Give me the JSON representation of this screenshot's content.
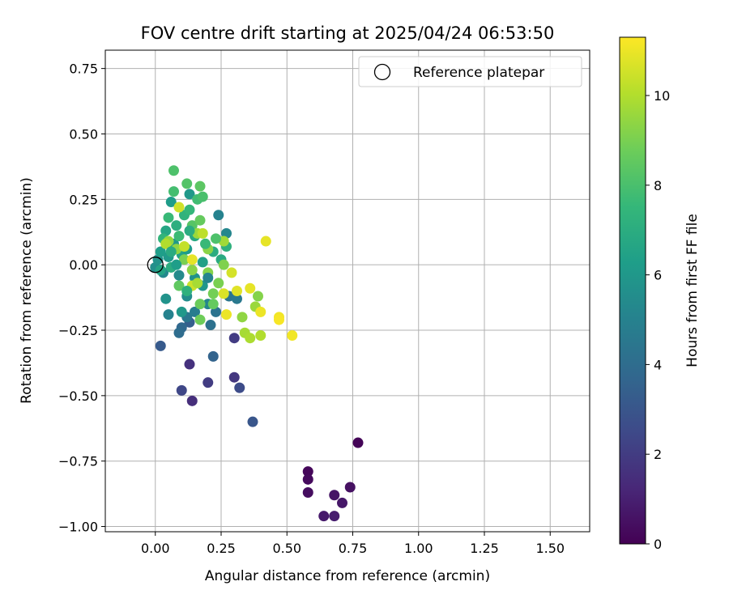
{
  "chart_data": {
    "type": "scatter",
    "title": "FOV centre drift starting at 2025/04/24 06:53:50",
    "xlabel": "Angular distance from reference (arcmin)",
    "ylabel": "Rotation from reference (arcmin)",
    "xlim": [
      -0.19,
      1.65
    ],
    "ylim": [
      -1.02,
      0.82
    ],
    "xticks": [
      0.0,
      0.25,
      0.5,
      0.75,
      1.0,
      1.25,
      1.5
    ],
    "xtick_labels": [
      "0.00",
      "0.25",
      "0.50",
      "0.75",
      "1.00",
      "1.25",
      "1.50"
    ],
    "yticks": [
      0.75,
      0.5,
      0.25,
      0.0,
      -0.25,
      -0.5,
      -0.75,
      -1.0
    ],
    "ytick_labels": [
      "0.75",
      "0.50",
      "0.25",
      "0.00",
      "−0.25",
      "−0.50",
      "−0.75",
      "−1.00"
    ],
    "grid": true,
    "legend": {
      "placement": "top-right",
      "label": "Reference platepar",
      "marker": "open-circle"
    },
    "reference_point": {
      "x": 0.0,
      "y": 0.0
    },
    "colorbar": {
      "label": "Hours from first FF file",
      "range": [
        0,
        11.3
      ],
      "ticks": [
        0,
        2,
        4,
        6,
        8,
        10
      ],
      "tick_labels": [
        "0",
        "2",
        "4",
        "6",
        "8",
        "10"
      ],
      "colormap": "viridis"
    },
    "points": [
      {
        "x": 0.77,
        "y": -0.68,
        "c": 0.1
      },
      {
        "x": 0.58,
        "y": -0.79,
        "c": 0.2
      },
      {
        "x": 0.58,
        "y": -0.82,
        "c": 0.3
      },
      {
        "x": 0.58,
        "y": -0.87,
        "c": 0.4
      },
      {
        "x": 0.74,
        "y": -0.85,
        "c": 0.5
      },
      {
        "x": 0.68,
        "y": -0.88,
        "c": 0.6
      },
      {
        "x": 0.71,
        "y": -0.91,
        "c": 0.7
      },
      {
        "x": 0.64,
        "y": -0.96,
        "c": 0.8
      },
      {
        "x": 0.68,
        "y": -0.96,
        "c": 0.9
      },
      {
        "x": 0.14,
        "y": -0.52,
        "c": 1.5
      },
      {
        "x": 0.13,
        "y": -0.38,
        "c": 1.6
      },
      {
        "x": 0.3,
        "y": -0.43,
        "c": 1.8
      },
      {
        "x": 0.2,
        "y": -0.45,
        "c": 2.0
      },
      {
        "x": 0.3,
        "y": -0.28,
        "c": 2.0
      },
      {
        "x": 0.1,
        "y": -0.48,
        "c": 2.4
      },
      {
        "x": 0.32,
        "y": -0.47,
        "c": 2.6
      },
      {
        "x": 0.37,
        "y": -0.6,
        "c": 3.0
      },
      {
        "x": 0.02,
        "y": -0.31,
        "c": 3.2
      },
      {
        "x": 0.13,
        "y": -0.22,
        "c": 3.4
      },
      {
        "x": 0.22,
        "y": -0.35,
        "c": 3.6
      },
      {
        "x": 0.1,
        "y": -0.24,
        "c": 3.8
      },
      {
        "x": 0.09,
        "y": -0.26,
        "c": 4.0
      },
      {
        "x": 0.21,
        "y": -0.23,
        "c": 4.2
      },
      {
        "x": 0.12,
        "y": -0.2,
        "c": 4.5
      },
      {
        "x": 0.05,
        "y": -0.19,
        "c": 5.0
      },
      {
        "x": 0.15,
        "y": -0.18,
        "c": 4.8
      },
      {
        "x": 0.23,
        "y": -0.18,
        "c": 4.3
      },
      {
        "x": 0.28,
        "y": -0.12,
        "c": 4.4
      },
      {
        "x": 0.31,
        "y": -0.13,
        "c": 4.6
      },
      {
        "x": 0.2,
        "y": -0.15,
        "c": 5.2
      },
      {
        "x": 0.24,
        "y": 0.19,
        "c": 5.0
      },
      {
        "x": 0.27,
        "y": 0.12,
        "c": 5.2
      },
      {
        "x": 0.13,
        "y": 0.27,
        "c": 6.0
      },
      {
        "x": 0.06,
        "y": 0.24,
        "c": 6.2
      },
      {
        "x": 0.04,
        "y": -0.13,
        "c": 5.8
      },
      {
        "x": 0.12,
        "y": -0.12,
        "c": 5.5
      },
      {
        "x": 0.15,
        "y": -0.05,
        "c": 5.7
      },
      {
        "x": 0.18,
        "y": -0.08,
        "c": 5.9
      },
      {
        "x": 0.09,
        "y": -0.04,
        "c": 5.4
      },
      {
        "x": 0.03,
        "y": -0.03,
        "c": 5.3
      },
      {
        "x": 0.0,
        "y": -0.01,
        "c": 5.6
      },
      {
        "x": 0.01,
        "y": 0.02,
        "c": 5.8
      },
      {
        "x": 0.05,
        "y": 0.03,
        "c": 6.1
      },
      {
        "x": 0.02,
        "y": 0.05,
        "c": 6.3
      },
      {
        "x": 0.07,
        "y": 0.08,
        "c": 6.0
      },
      {
        "x": 0.1,
        "y": 0.04,
        "c": 6.5
      },
      {
        "x": 0.12,
        "y": 0.06,
        "c": 6.2
      },
      {
        "x": 0.15,
        "y": 0.11,
        "c": 6.8
      },
      {
        "x": 0.18,
        "y": 0.01,
        "c": 6.4
      },
      {
        "x": 0.22,
        "y": 0.05,
        "c": 7.0
      },
      {
        "x": 0.25,
        "y": 0.02,
        "c": 6.9
      },
      {
        "x": 0.27,
        "y": 0.07,
        "c": 7.2
      },
      {
        "x": 0.04,
        "y": 0.13,
        "c": 6.7
      },
      {
        "x": 0.08,
        "y": 0.15,
        "c": 7.1
      },
      {
        "x": 0.11,
        "y": 0.19,
        "c": 7.3
      },
      {
        "x": 0.13,
        "y": 0.21,
        "c": 7.5
      },
      {
        "x": 0.16,
        "y": 0.25,
        "c": 7.8
      },
      {
        "x": 0.18,
        "y": 0.26,
        "c": 8.0
      },
      {
        "x": 0.12,
        "y": 0.31,
        "c": 8.2
      },
      {
        "x": 0.17,
        "y": 0.3,
        "c": 8.4
      },
      {
        "x": 0.07,
        "y": 0.36,
        "c": 8.1
      },
      {
        "x": 0.07,
        "y": 0.28,
        "c": 7.9
      },
      {
        "x": 0.05,
        "y": 0.18,
        "c": 7.6
      },
      {
        "x": 0.03,
        "y": 0.1,
        "c": 7.4
      },
      {
        "x": 0.09,
        "y": 0.11,
        "c": 7.7
      },
      {
        "x": 0.14,
        "y": 0.15,
        "c": 8.3
      },
      {
        "x": 0.17,
        "y": 0.17,
        "c": 8.6
      },
      {
        "x": 0.06,
        "y": -0.01,
        "c": 7.0
      },
      {
        "x": 0.09,
        "y": -0.08,
        "c": 8.5
      },
      {
        "x": 0.17,
        "y": -0.21,
        "c": 8.8
      },
      {
        "x": 0.17,
        "y": -0.15,
        "c": 8.7
      },
      {
        "x": 0.22,
        "y": -0.11,
        "c": 8.9
      },
      {
        "x": 0.24,
        "y": -0.07,
        "c": 9.0
      },
      {
        "x": 0.26,
        "y": 0.0,
        "c": 9.1
      },
      {
        "x": 0.2,
        "y": -0.03,
        "c": 9.2
      },
      {
        "x": 0.14,
        "y": -0.02,
        "c": 9.3
      },
      {
        "x": 0.11,
        "y": 0.02,
        "c": 9.0
      },
      {
        "x": 0.08,
        "y": 0.06,
        "c": 9.4
      },
      {
        "x": 0.05,
        "y": 0.09,
        "c": 9.5
      },
      {
        "x": 0.16,
        "y": 0.12,
        "c": 9.6
      },
      {
        "x": 0.2,
        "y": 0.06,
        "c": 9.3
      },
      {
        "x": 0.26,
        "y": 0.09,
        "c": 9.7
      },
      {
        "x": 0.33,
        "y": -0.2,
        "c": 9.4
      },
      {
        "x": 0.34,
        "y": -0.26,
        "c": 9.8
      },
      {
        "x": 0.36,
        "y": -0.28,
        "c": 9.9
      },
      {
        "x": 0.38,
        "y": -0.16,
        "c": 9.6
      },
      {
        "x": 0.39,
        "y": -0.12,
        "c": 9.2
      },
      {
        "x": 0.4,
        "y": -0.27,
        "c": 10.0
      },
      {
        "x": 0.04,
        "y": 0.08,
        "c": 10.0
      },
      {
        "x": 0.18,
        "y": 0.12,
        "c": 10.2
      },
      {
        "x": 0.09,
        "y": 0.22,
        "c": 10.5
      },
      {
        "x": 0.11,
        "y": 0.07,
        "c": 10.3
      },
      {
        "x": 0.14,
        "y": -0.08,
        "c": 10.4
      },
      {
        "x": 0.29,
        "y": -0.03,
        "c": 10.6
      },
      {
        "x": 0.31,
        "y": -0.1,
        "c": 10.8
      },
      {
        "x": 0.36,
        "y": -0.09,
        "c": 10.9
      },
      {
        "x": 0.4,
        "y": -0.18,
        "c": 11.0
      },
      {
        "x": 0.42,
        "y": 0.09,
        "c": 10.9
      },
      {
        "x": 0.47,
        "y": -0.2,
        "c": 11.1
      },
      {
        "x": 0.47,
        "y": -0.21,
        "c": 11.2
      },
      {
        "x": 0.52,
        "y": -0.27,
        "c": 11.1
      },
      {
        "x": 0.27,
        "y": -0.19,
        "c": 11.0
      },
      {
        "x": 0.26,
        "y": -0.11,
        "c": 10.7
      },
      {
        "x": 0.14,
        "y": 0.02,
        "c": 10.9
      },
      {
        "x": 0.16,
        "y": -0.07,
        "c": 9.8
      },
      {
        "x": 0.22,
        "y": -0.15,
        "c": 8.6
      },
      {
        "x": 0.12,
        "y": -0.1,
        "c": 7.2
      },
      {
        "x": 0.1,
        "y": -0.18,
        "c": 6.0
      },
      {
        "x": 0.06,
        "y": 0.05,
        "c": 6.9
      },
      {
        "x": 0.02,
        "y": -0.02,
        "c": 6.6
      },
      {
        "x": 0.08,
        "y": 0.0,
        "c": 6.3
      },
      {
        "x": 0.19,
        "y": 0.08,
        "c": 7.6
      },
      {
        "x": 0.23,
        "y": 0.1,
        "c": 8.1
      },
      {
        "x": 0.13,
        "y": 0.13,
        "c": 7.0
      },
      {
        "x": 0.2,
        "y": -0.05,
        "c": 5.1
      }
    ]
  }
}
